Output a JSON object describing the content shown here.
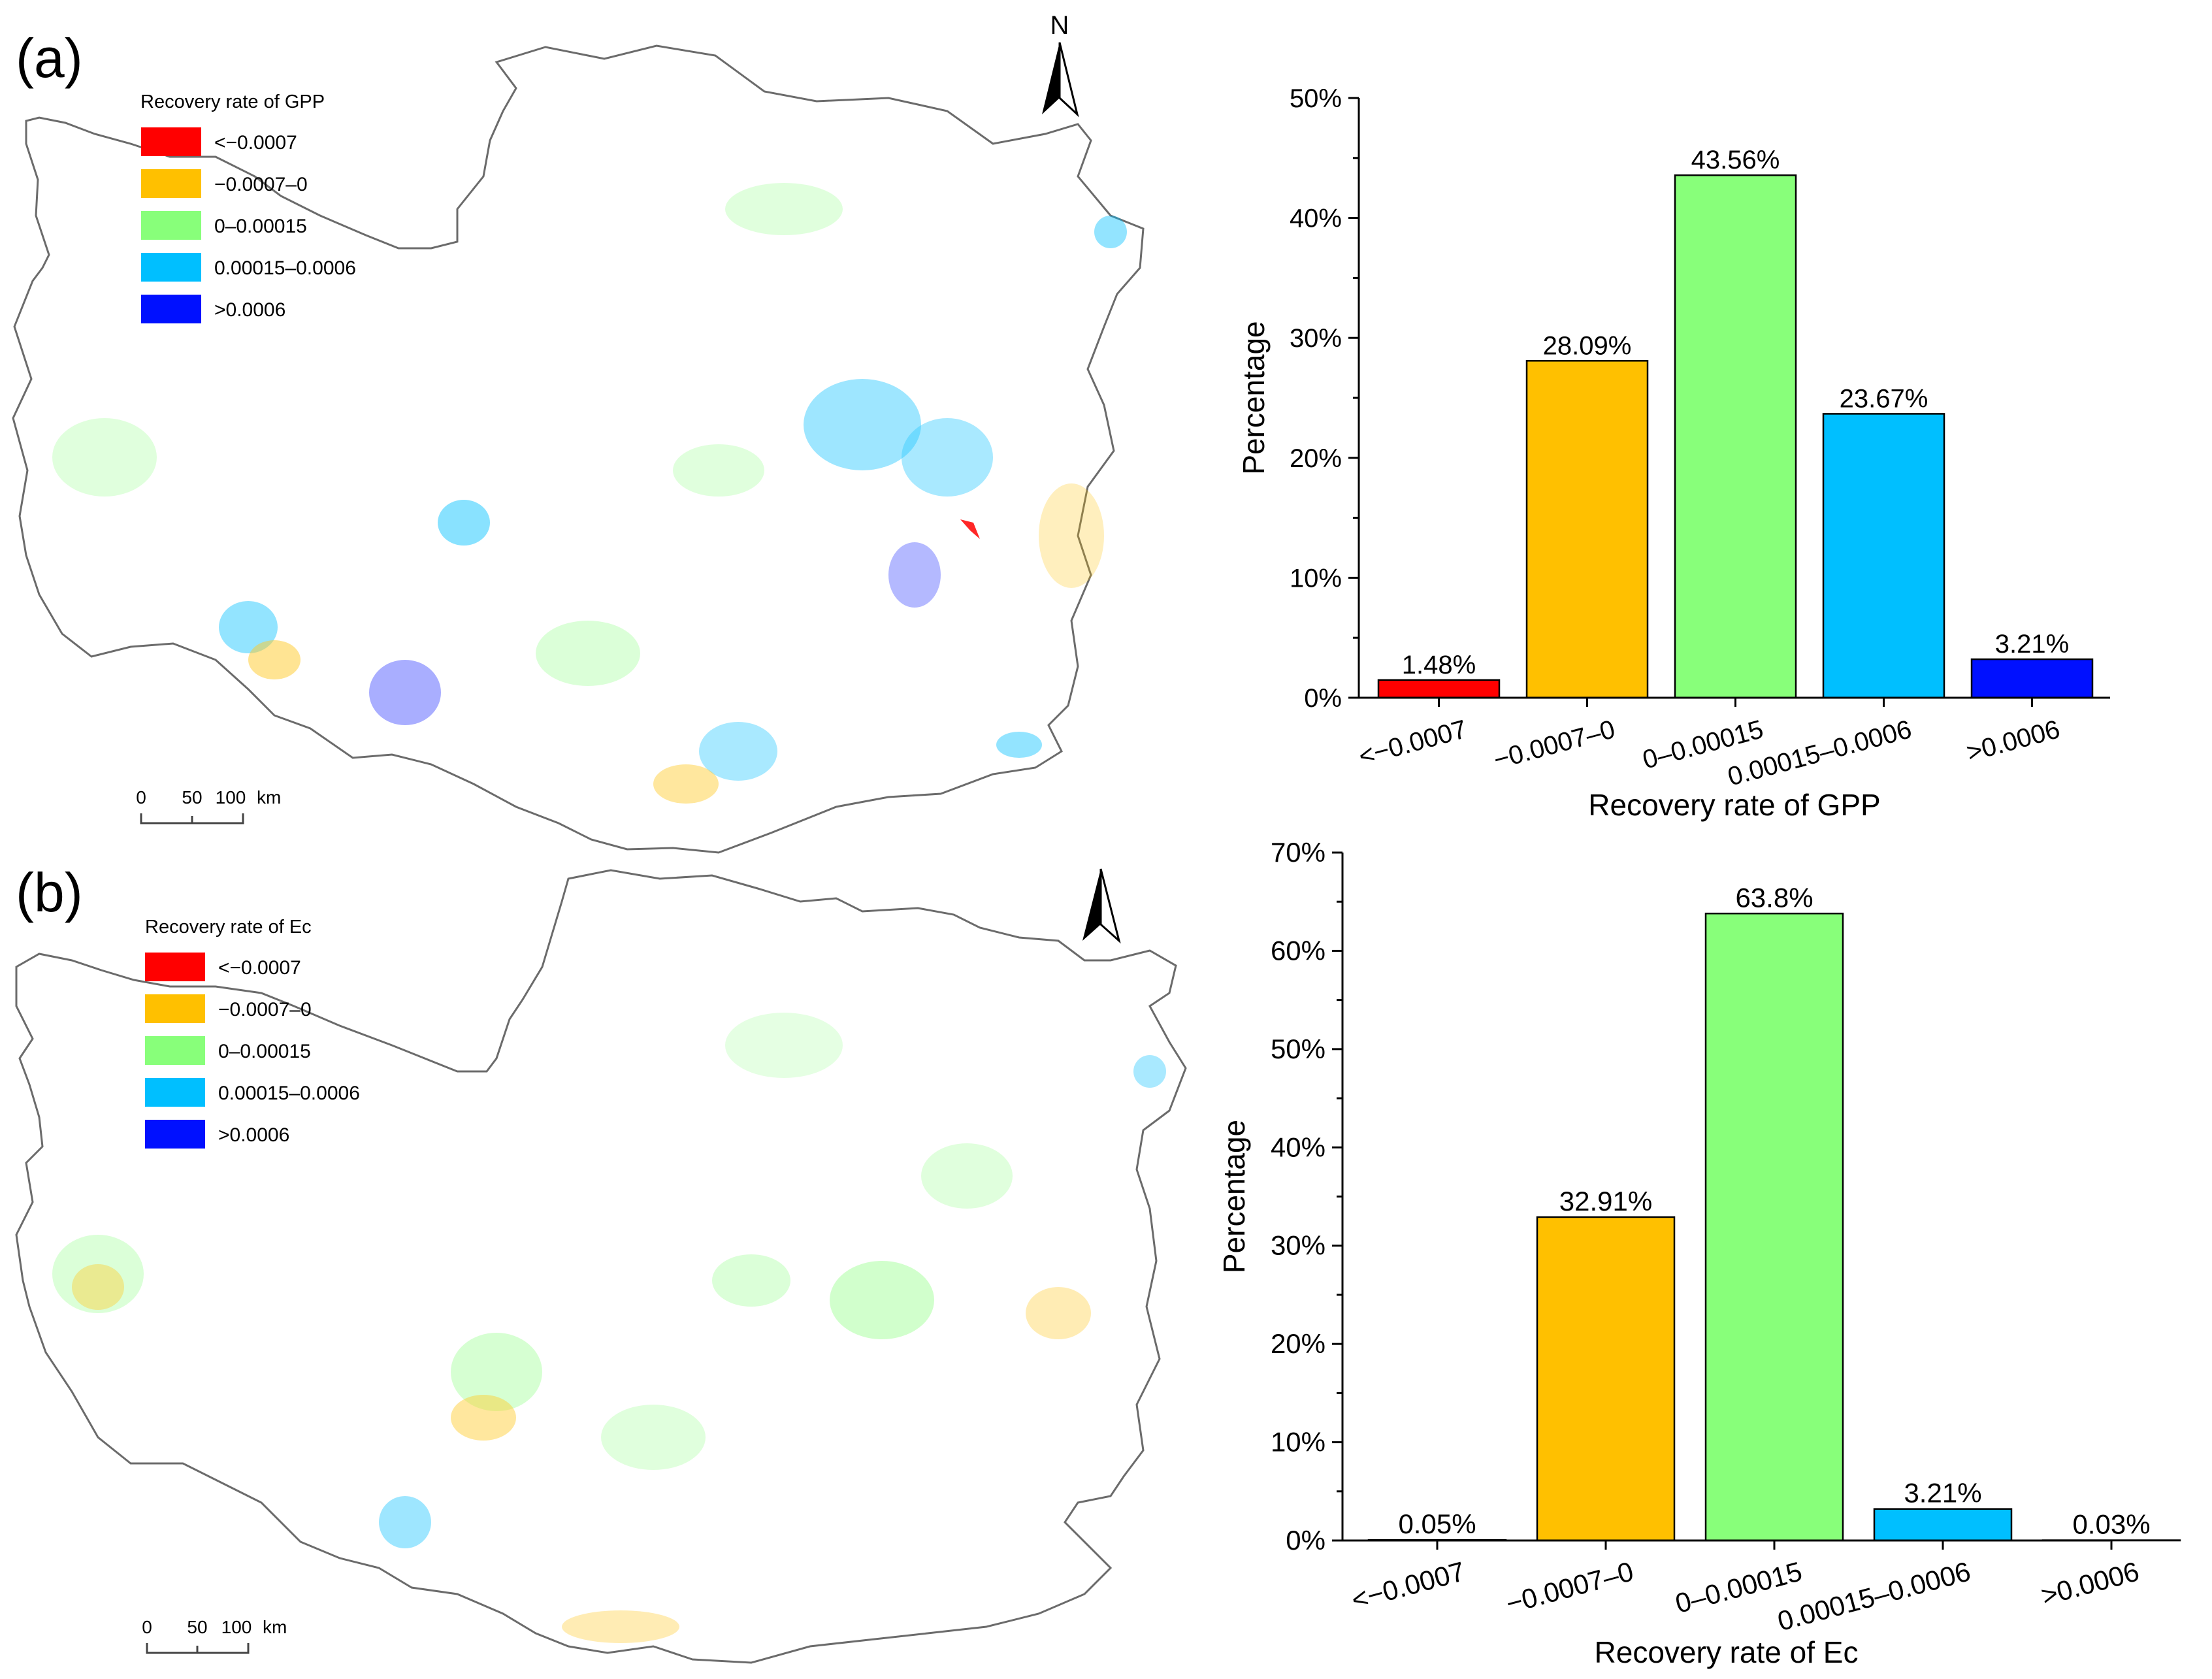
{
  "panels": [
    {
      "panel_label": "(a)",
      "map": {
        "legend_title": "Recovery rate of GPP",
        "legend_items": [
          {
            "label": "<−0.0007",
            "color": "#ff0000"
          },
          {
            "label": "−0.0007–0",
            "color": "#ffc000"
          },
          {
            "label": "0–0.00015",
            "color": "#88ff7a"
          },
          {
            "label": "0.00015–0.0006",
            "color": "#00bfff"
          },
          {
            "label": ">0.0006",
            "color": "#0010ff"
          }
        ],
        "north_label": "N",
        "scale_ticks": [
          "0",
          "50",
          "100"
        ],
        "scale_unit": "km"
      }
    },
    {
      "panel_label": "(b)",
      "map": {
        "legend_title": "Recovery rate of Ec",
        "legend_items": [
          {
            "label": "<−0.0007",
            "color": "#ff0000"
          },
          {
            "label": "−0.0007–0",
            "color": "#ffc000"
          },
          {
            "label": "0–0.00015",
            "color": "#88ff7a"
          },
          {
            "label": "0.00015–0.0006",
            "color": "#00bfff"
          },
          {
            "label": ">0.0006",
            "color": "#0010ff"
          }
        ],
        "north_label": "",
        "scale_ticks": [
          "0",
          "50",
          "100"
        ],
        "scale_unit": "km"
      }
    }
  ],
  "chart_data": [
    {
      "type": "bar",
      "title": "",
      "xlabel": "Recovery rate of GPP",
      "ylabel": "Percentage",
      "categories": [
        "<−0.0007",
        "−0.0007–0",
        "0–0.00015",
        "0.00015–0.0006",
        ">0.0006"
      ],
      "values": [
        1.48,
        28.09,
        43.56,
        23.67,
        3.21
      ],
      "value_labels": [
        "1.48%",
        "28.09%",
        "43.56%",
        "23.67%",
        "3.21%"
      ],
      "colors": [
        "#ff0000",
        "#ffc000",
        "#88ff7a",
        "#00bfff",
        "#0010ff"
      ],
      "ylim": [
        0,
        50
      ],
      "yticks": [
        0,
        10,
        20,
        30,
        40,
        50
      ],
      "ytick_labels": [
        "0%",
        "10%",
        "20%",
        "30%",
        "40%",
        "50%"
      ],
      "grid": false
    },
    {
      "type": "bar",
      "title": "",
      "xlabel": "Recovery rate of Ec",
      "ylabel": "Percentage",
      "categories": [
        "<−0.0007",
        "−0.0007–0",
        "0–0.00015",
        "0.00015–0.0006",
        ">0.0006"
      ],
      "values": [
        0.05,
        32.91,
        63.8,
        3.21,
        0.03
      ],
      "value_labels": [
        "0.05%",
        "32.91%",
        "63.8%",
        "3.21%",
        "0.03%"
      ],
      "colors": [
        "#ff0000",
        "#ffc000",
        "#88ff7a",
        "#00bfff",
        "#0010ff"
      ],
      "ylim": [
        0,
        70
      ],
      "yticks": [
        0,
        10,
        20,
        30,
        40,
        50,
        60,
        70
      ],
      "ytick_labels": [
        "0%",
        "10%",
        "20%",
        "30%",
        "40%",
        "50%",
        "60%",
        "70%"
      ],
      "grid": false
    }
  ]
}
